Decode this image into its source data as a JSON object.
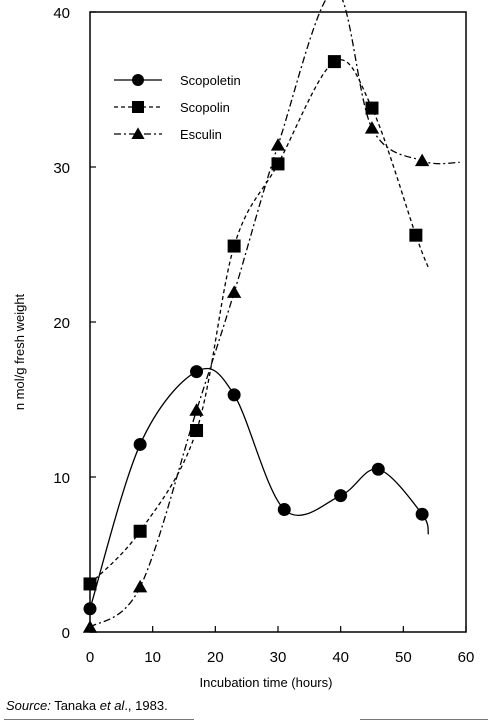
{
  "chart_data": {
    "type": "line",
    "title": "",
    "xlabel": "Incubation time (hours)",
    "ylabel": "n mol/g fresh weight",
    "xlim": [
      0,
      60
    ],
    "ylim": [
      0,
      40
    ],
    "x_ticks": [
      0,
      10,
      20,
      30,
      40,
      50,
      60
    ],
    "y_ticks": [
      0,
      10,
      20,
      30,
      40
    ],
    "x_tick_labels": [
      "0",
      "10",
      "20",
      "30",
      "40",
      "50",
      "60"
    ],
    "y_tick_labels": [
      "0",
      "10",
      "20",
      "30",
      "40"
    ],
    "grid": false,
    "legend_position": "top-left",
    "series": [
      {
        "name": "Scopoletin",
        "marker": "circle",
        "line_style": "solid",
        "points": [
          [
            0,
            1.5
          ],
          [
            8,
            12.1
          ],
          [
            17,
            16.8
          ],
          [
            23,
            15.3
          ],
          [
            31,
            7.9
          ],
          [
            40,
            8.8
          ],
          [
            46,
            10.5
          ],
          [
            53,
            7.6
          ]
        ],
        "curve_end": [
          54,
          6.3
        ]
      },
      {
        "name": "Scopolin",
        "marker": "square",
        "line_style": "dashed",
        "points": [
          [
            0,
            3.1
          ],
          [
            8,
            6.5
          ],
          [
            17,
            13.0
          ],
          [
            23,
            24.9
          ],
          [
            30,
            30.2
          ],
          [
            39,
            36.8
          ],
          [
            45,
            33.8
          ],
          [
            52,
            25.6
          ]
        ],
        "curve_end": [
          54,
          23.5
        ]
      },
      {
        "name": "Esculin",
        "marker": "triangle",
        "line_style": "dash-dot",
        "points": [
          [
            0,
            0.3
          ],
          [
            8,
            2.9
          ],
          [
            17,
            14.3
          ],
          [
            23,
            21.9
          ],
          [
            30,
            31.4
          ],
          [
            39,
            41.4
          ],
          [
            45,
            32.5
          ],
          [
            53,
            30.4
          ]
        ],
        "curve_end": [
          59,
          30.3
        ]
      }
    ]
  },
  "source": {
    "prefix": "Source:",
    "text": " Tanaka ",
    "etal": "et al",
    "suffix": "., 1983."
  },
  "colors": {
    "ink": "#000000",
    "background": "#ffffff"
  }
}
